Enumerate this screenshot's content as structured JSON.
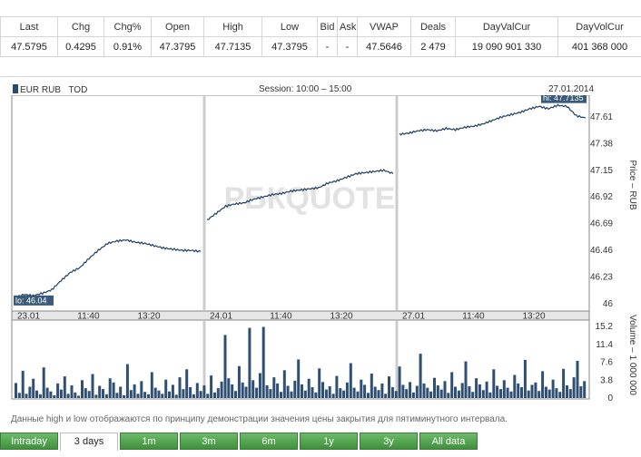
{
  "quote_table": {
    "headers": [
      "Last",
      "Chg",
      "Chg%",
      "Open",
      "High",
      "Low",
      "Bid",
      "Ask",
      "VWAP",
      "Deals",
      "DayValCur",
      "DayVolCur"
    ],
    "values": [
      "47.5795",
      "0.4295",
      "0.91%",
      "47.3795",
      "47.7135",
      "47.3795",
      "-",
      "-",
      "47.5646",
      "2 479",
      "19 090 901 330",
      "401 368 000"
    ]
  },
  "chart": {
    "instrument": "EUR RUB",
    "board": "TOD",
    "session": "Session: 10:00 – 15:00",
    "date": "27.01.2014",
    "watermark": "РБКQUOTE",
    "hi_label": "hi: 47.7135",
    "lo_label": "lo: 46.04",
    "price_axis_label": "Price – RUB",
    "volume_axis_label": "Volume – 1 000 000",
    "colors": {
      "line": "#1f3e62",
      "volume": "#2f4f73",
      "session_break": "#cccccc",
      "label_bg": "#3a5a7a"
    }
  },
  "chart_data": [
    {
      "type": "line",
      "title": "",
      "ylabel": "Price – RUB",
      "ylim": [
        46.0,
        47.75
      ],
      "y_ticks": [
        "47.61",
        "47.38",
        "47.15",
        "46.92",
        "46.69",
        "46.46",
        "46.23",
        "46"
      ],
      "x_ticks": [
        "23.01",
        "11:40",
        "13:20",
        "24.01",
        "11:40",
        "13:20",
        "27.01",
        "11:40",
        "13:20"
      ],
      "sessions": [
        {
          "date": "23.01",
          "x": [
            0,
            0.05,
            0.1,
            0.15,
            0.2,
            0.25,
            0.3,
            0.35,
            0.4,
            0.45,
            0.5,
            0.55,
            0.6,
            0.65,
            0.7,
            0.75,
            0.8,
            0.85,
            0.9,
            0.95,
            1.0
          ],
          "y": [
            46.05,
            46.08,
            46.07,
            46.09,
            46.12,
            46.2,
            46.27,
            46.31,
            46.39,
            46.46,
            46.52,
            46.54,
            46.55,
            46.53,
            46.52,
            46.5,
            46.48,
            46.47,
            46.46,
            46.46,
            46.45
          ]
        },
        {
          "date": "24.01",
          "x": [
            0,
            0.05,
            0.1,
            0.15,
            0.2,
            0.25,
            0.3,
            0.35,
            0.4,
            0.45,
            0.5,
            0.55,
            0.6,
            0.65,
            0.7,
            0.75,
            0.8,
            0.85,
            0.9,
            0.95,
            1.0
          ],
          "y": [
            46.72,
            46.78,
            46.84,
            46.86,
            46.87,
            46.9,
            46.92,
            46.94,
            46.95,
            46.97,
            46.98,
            46.99,
            47.0,
            47.04,
            47.06,
            47.09,
            47.12,
            47.13,
            47.14,
            47.15,
            47.12
          ]
        },
        {
          "date": "27.01",
          "x": [
            0,
            0.05,
            0.1,
            0.15,
            0.2,
            0.25,
            0.3,
            0.35,
            0.4,
            0.45,
            0.5,
            0.55,
            0.6,
            0.65,
            0.7,
            0.75,
            0.8,
            0.85,
            0.9,
            0.95,
            1.0
          ],
          "y": [
            47.46,
            47.47,
            47.49,
            47.5,
            47.49,
            47.51,
            47.5,
            47.52,
            47.53,
            47.55,
            47.58,
            47.61,
            47.63,
            47.65,
            47.68,
            47.7,
            47.68,
            47.71,
            47.7,
            47.62,
            47.6
          ]
        }
      ]
    },
    {
      "type": "bar",
      "title": "",
      "ylabel": "Volume – 1 000 000",
      "ylim": [
        0,
        15.2
      ],
      "y_ticks": [
        "15.2",
        "11.4",
        "7.6",
        "3.8",
        "0"
      ],
      "values": [
        3.2,
        1.1,
        5.8,
        0.9,
        2.4,
        4.1,
        1.6,
        0.8,
        6.5,
        2.2,
        1.4,
        0.6,
        3.1,
        1.8,
        4.6,
        0.9,
        2.7,
        1.2,
        0.5,
        3.8,
        2.1,
        1.5,
        5.1,
        0.7,
        2.6,
        1.9,
        0.8,
        4.2,
        3.3,
        1.1,
        2.4,
        0.6,
        7.2,
        1.7,
        2.9,
        0.9,
        3.6,
        1.3,
        0.8,
        5.5,
        2.2,
        1.6,
        0.9,
        3.9,
        1.4,
        2.8,
        0.7,
        4.4,
        1.9,
        6.1,
        2.3,
        0.8,
        3.2,
        1.5,
        2.7,
        0.9,
        4.8,
        1.2,
        2.1,
        3.5,
        13.4,
        4.2,
        2.9,
        1.5,
        6.8,
        3.3,
        2.4,
        14.9,
        3.8,
        2.2,
        5.3,
        15.1,
        2.7,
        1.9,
        4.4,
        3.1,
        1.3,
        5.9,
        2.6,
        1.4,
        3.7,
        8.2,
        2.9,
        1.6,
        4.1,
        2.3,
        1.2,
        6.3,
        3.4,
        1.8,
        2.5,
        0.9,
        4.7,
        2.1,
        1.6,
        3.3,
        7.4,
        2.2,
        1.4,
        3.9,
        2.8,
        1.1,
        5.2,
        2.4,
        1.7,
        3.1,
        0.9,
        4.6,
        2.3,
        1.5,
        6.7,
        2.8,
        1.9,
        3.4,
        1.2,
        2.6,
        9.4,
        3.1,
        2.2,
        1.4,
        4.3,
        2.7,
        1.8,
        3.6,
        1.1,
        5.5,
        2.4,
        1.6,
        3.2,
        7.8,
        2.5,
        1.3,
        4.2,
        2.9,
        1.7,
        3.5,
        1.2,
        6.1,
        2.6,
        1.9,
        3.8,
        2.2,
        1.4,
        4.9,
        3.1,
        2.3,
        8.1,
        1.6,
        2.8,
        3.3,
        1.5,
        5.7,
        2.4,
        1.8,
        3.9,
        2.1,
        1.3,
        6.2,
        2.7,
        1.9,
        4.4,
        7.9,
        2.5,
        3.6
      ]
    }
  ],
  "footnote": "Данные high и low отображаются по принципу демонстрации значения цены закрытия для пятиминутного интервала.",
  "tabs": [
    "Intraday",
    "3 days",
    "1m",
    "3m",
    "6m",
    "1y",
    "3y",
    "All data"
  ],
  "active_tab": "3 days"
}
